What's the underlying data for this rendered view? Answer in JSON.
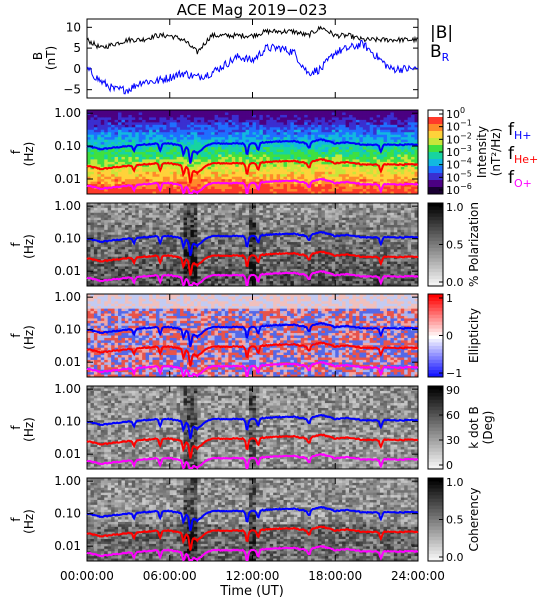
{
  "title": "ACE Mag 2019−023",
  "xlabel": "Time (UT)",
  "x_ticks": [
    "00:00:00",
    "06:00:00",
    "12:00:00",
    "18:00:00",
    "24:00:00"
  ],
  "colors": {
    "H": "#0000ff",
    "He": "#ff0000",
    "O": "#ff00ff",
    "B": "#000000",
    "BR": "#0000ff"
  },
  "chart_data": [
    {
      "type": "line",
      "panel": "magnetic-field",
      "ylabel": "B",
      "yunit": "(nT)",
      "yticks": [
        "10",
        "5",
        "0",
        "−5"
      ],
      "ylim": [
        -7,
        12
      ],
      "x": [
        0,
        1,
        2,
        3,
        4,
        5,
        6,
        7,
        8,
        9,
        10,
        11,
        12,
        13,
        14,
        15,
        16,
        17,
        18,
        19,
        20,
        21,
        22,
        23,
        24
      ],
      "series": [
        {
          "name": "|B|",
          "values": [
            7,
            5,
            6,
            7,
            7,
            8,
            8,
            7,
            4,
            8,
            8,
            8,
            8,
            9,
            9,
            9,
            8,
            10,
            8,
            8,
            7,
            7,
            7,
            7,
            7
          ]
        },
        {
          "name": "B",
          "sub": "R",
          "values": [
            0,
            -3,
            -5,
            -5,
            -3,
            -3,
            -2,
            -1,
            -2,
            -1,
            1,
            3,
            2,
            5,
            5,
            4,
            -1,
            0,
            4,
            5,
            6,
            3,
            0,
            0,
            0
          ]
        }
      ]
    },
    {
      "type": "heatmap",
      "panel": "intensity",
      "ylabel": "f",
      "yunit": "(Hz)",
      "yticks": [
        "1.00",
        "0.10",
        "0.01"
      ],
      "cbar_label": "Intensity",
      "cbar_unit": "(nT²/Hz)",
      "cbar_ticks": [
        "10",
        "10",
        "10",
        "10",
        "10",
        "10",
        "10"
      ],
      "cbar_exp": [
        "0",
        "−1",
        "−2",
        "−3",
        "−4",
        "−5",
        "−6"
      ],
      "legend": [
        {
          "text": "f",
          "sub": "H+"
        },
        {
          "text": "f",
          "sub": "He+"
        },
        {
          "text": "f",
          "sub": "O+"
        }
      ]
    },
    {
      "type": "heatmap",
      "panel": "polarization",
      "ylabel": "f",
      "yunit": "(Hz)",
      "yticks": [
        "1.00",
        "0.10",
        "0.01"
      ],
      "cbar_label": "% Polarization",
      "cbar_ticks": [
        "1.0",
        "0.5",
        "0.0"
      ]
    },
    {
      "type": "heatmap",
      "panel": "ellipticity",
      "ylabel": "f",
      "yunit": "(Hz)",
      "yticks": [
        "1.00",
        "0.10",
        "0.01"
      ],
      "cbar_label": "Ellipticity",
      "cbar_ticks": [
        "1",
        "0",
        "−1"
      ]
    },
    {
      "type": "heatmap",
      "panel": "k-dot-b",
      "ylabel": "f",
      "yunit": "(Hz)",
      "yticks": [
        "1.00",
        "0.10",
        "0.01"
      ],
      "cbar_label": "k dot B",
      "cbar_unit": "(Deg)",
      "cbar_ticks": [
        "90",
        "60",
        "30",
        "0"
      ]
    },
    {
      "type": "heatmap",
      "panel": "coherency",
      "ylabel": "f",
      "yunit": "(Hz)",
      "yticks": [
        "1.00",
        "0.10",
        "0.01"
      ],
      "cbar_label": "Coherency",
      "cbar_ticks": [
        "1.0",
        "0.5",
        "0.0"
      ]
    }
  ],
  "gyrofrequency_lines": {
    "x": [
      0,
      1,
      2,
      3,
      4,
      5,
      6,
      7,
      8,
      9,
      10,
      11,
      12,
      13,
      14,
      15,
      16,
      17,
      18,
      19,
      20,
      21,
      22,
      23,
      24
    ],
    "f_H": [
      0.1,
      0.08,
      0.09,
      0.1,
      0.11,
      0.12,
      0.12,
      0.1,
      0.06,
      0.12,
      0.12,
      0.12,
      0.12,
      0.13,
      0.14,
      0.14,
      0.12,
      0.16,
      0.12,
      0.13,
      0.11,
      0.11,
      0.11,
      0.11,
      0.11
    ]
  }
}
